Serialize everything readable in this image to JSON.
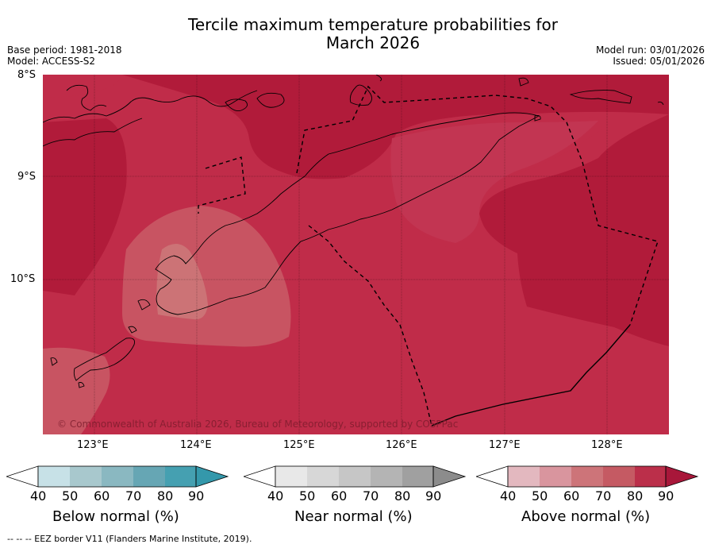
{
  "title": {
    "line1": "Tercile maximum temperature probabilities for",
    "line2": "March 2026"
  },
  "meta": {
    "base_period": "Base period: 1981-2018",
    "model": "Model: ACCESS-S2",
    "model_run": "Model run: 03/01/2026",
    "issued": "Issued: 05/01/2026"
  },
  "map": {
    "lat_labels": [
      "8°S",
      "9°S",
      "10°S"
    ],
    "lon_labels": [
      "123°E",
      "124°E",
      "125°E",
      "126°E",
      "127°E",
      "128°E"
    ],
    "copyright": "© Commonwealth of Australia 2026, Bureau of Meteorology, supported by COSPPac",
    "colors": {
      "above_90": "#b11b3a",
      "above_80": "#c02c49",
      "above_70": "#c85462",
      "above_60": "#cc7376"
    }
  },
  "colorbars": [
    {
      "label": "Below normal (%)",
      "ticks": [
        "40",
        "50",
        "60",
        "70",
        "80",
        "90"
      ],
      "colors": [
        "#ffffff",
        "#c7e1e7",
        "#a8c8cd",
        "#8ab8c1",
        "#66a6b4",
        "#45a0b1",
        "#3498ab"
      ]
    },
    {
      "label": "Near normal (%)",
      "ticks": [
        "40",
        "50",
        "60",
        "70",
        "80",
        "90"
      ],
      "colors": [
        "#ffffff",
        "#e8e8e8",
        "#d7d7d7",
        "#c6c6c6",
        "#b4b4b4",
        "#a0a0a0",
        "#8c8c8c"
      ]
    },
    {
      "label": "Above normal (%)",
      "ticks": [
        "40",
        "50",
        "60",
        "70",
        "80",
        "90"
      ],
      "colors": [
        "#ffffff",
        "#e3b8bf",
        "#d9959e",
        "#cd7479",
        "#c55a63",
        "#bb2f4a",
        "#a8173a"
      ]
    }
  ],
  "footer": "--  --  -- EEZ border V11 (Flanders Marine Institute, 2019)."
}
